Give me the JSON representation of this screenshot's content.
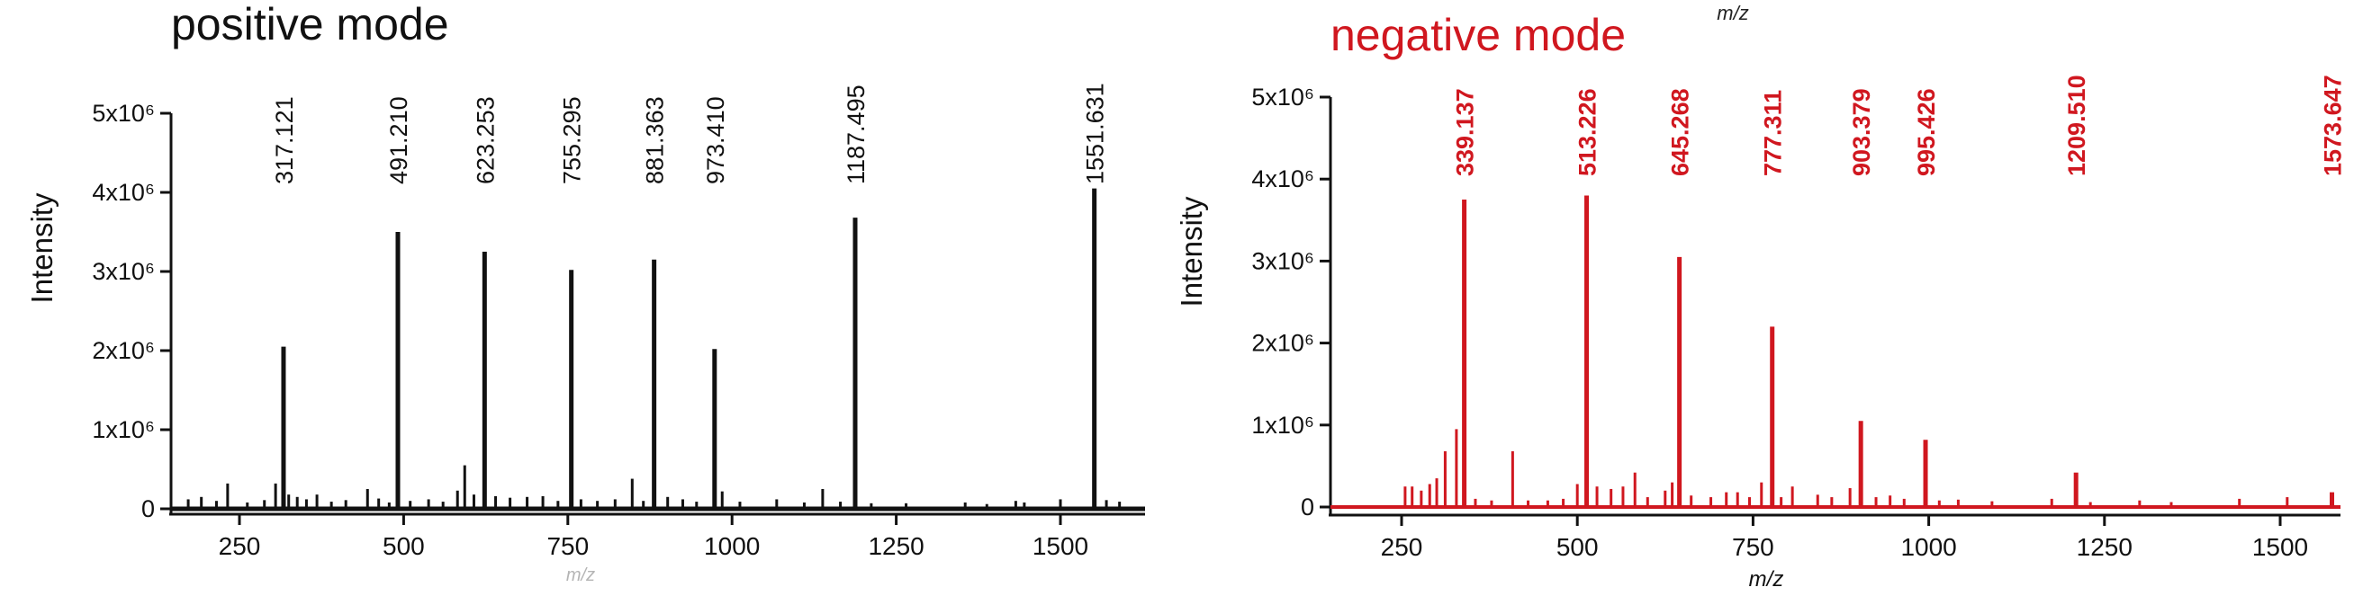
{
  "chart_data": [
    {
      "type": "line",
      "title": "positive mode",
      "xlabel": "m/z",
      "ylabel": "Intensity",
      "color": "#111111",
      "xlim": [
        160,
        1600
      ],
      "ylim": [
        0,
        5000000
      ],
      "x_ticks": [
        250,
        500,
        750,
        1000,
        1250,
        1500
      ],
      "y_tick_labels": [
        "0",
        "1x10⁶",
        "2x10⁶",
        "3x10⁶",
        "4x10⁶",
        "5x10⁶"
      ],
      "y_tick_values": [
        0,
        1000000,
        2000000,
        3000000,
        4000000,
        5000000
      ],
      "labeled_peaks": [
        {
          "label": "317.121",
          "x": 317.121,
          "y": 2050000
        },
        {
          "label": "491.210",
          "x": 491.21,
          "y": 3500000
        },
        {
          "label": "623.253",
          "x": 623.253,
          "y": 3250000
        },
        {
          "label": "755.295",
          "x": 755.295,
          "y": 3020000
        },
        {
          "label": "881.363",
          "x": 881.363,
          "y": 3150000
        },
        {
          "label": "973.410",
          "x": 973.41,
          "y": 2020000
        },
        {
          "label": "1187.495",
          "x": 1187.495,
          "y": 3680000
        },
        {
          "label": "1551.631",
          "x": 1551.631,
          "y": 4050000
        }
      ],
      "minor_peaks": [
        {
          "x": 172,
          "y": 120000
        },
        {
          "x": 192,
          "y": 150000
        },
        {
          "x": 215,
          "y": 100000
        },
        {
          "x": 232,
          "y": 320000
        },
        {
          "x": 262,
          "y": 80000
        },
        {
          "x": 288,
          "y": 110000
        },
        {
          "x": 305,
          "y": 320000
        },
        {
          "x": 325,
          "y": 180000
        },
        {
          "x": 338,
          "y": 150000
        },
        {
          "x": 352,
          "y": 120000
        },
        {
          "x": 368,
          "y": 180000
        },
        {
          "x": 390,
          "y": 90000
        },
        {
          "x": 412,
          "y": 110000
        },
        {
          "x": 445,
          "y": 250000
        },
        {
          "x": 462,
          "y": 130000
        },
        {
          "x": 478,
          "y": 80000
        },
        {
          "x": 510,
          "y": 100000
        },
        {
          "x": 538,
          "y": 120000
        },
        {
          "x": 560,
          "y": 90000
        },
        {
          "x": 582,
          "y": 230000
        },
        {
          "x": 593,
          "y": 550000
        },
        {
          "x": 607,
          "y": 180000
        },
        {
          "x": 640,
          "y": 160000
        },
        {
          "x": 662,
          "y": 140000
        },
        {
          "x": 688,
          "y": 150000
        },
        {
          "x": 712,
          "y": 160000
        },
        {
          "x": 735,
          "y": 100000
        },
        {
          "x": 770,
          "y": 120000
        },
        {
          "x": 795,
          "y": 100000
        },
        {
          "x": 822,
          "y": 120000
        },
        {
          "x": 848,
          "y": 380000
        },
        {
          "x": 865,
          "y": 100000
        },
        {
          "x": 902,
          "y": 150000
        },
        {
          "x": 925,
          "y": 120000
        },
        {
          "x": 946,
          "y": 90000
        },
        {
          "x": 985,
          "y": 220000
        },
        {
          "x": 1012,
          "y": 90000
        },
        {
          "x": 1068,
          "y": 120000
        },
        {
          "x": 1110,
          "y": 80000
        },
        {
          "x": 1138,
          "y": 250000
        },
        {
          "x": 1165,
          "y": 90000
        },
        {
          "x": 1212,
          "y": 70000
        },
        {
          "x": 1265,
          "y": 70000
        },
        {
          "x": 1355,
          "y": 80000
        },
        {
          "x": 1388,
          "y": 60000
        },
        {
          "x": 1432,
          "y": 100000
        },
        {
          "x": 1445,
          "y": 80000
        },
        {
          "x": 1500,
          "y": 120000
        },
        {
          "x": 1570,
          "y": 110000
        },
        {
          "x": 1590,
          "y": 90000
        }
      ]
    },
    {
      "type": "line",
      "title": "negative mode",
      "xlabel": "m/z",
      "ylabel": "Intensity",
      "color": "#d0171f",
      "xlim": [
        160,
        1600
      ],
      "ylim": [
        0,
        5000000
      ],
      "x_ticks": [
        250,
        500,
        750,
        1000,
        1250,
        1500
      ],
      "y_tick_labels": [
        "0",
        "1x10⁶",
        "2x10⁶",
        "3x10⁶",
        "4x10⁶",
        "5x10⁶"
      ],
      "y_tick_values": [
        0,
        1000000,
        2000000,
        3000000,
        4000000,
        5000000
      ],
      "labeled_peaks": [
        {
          "label": "339.137",
          "x": 339.137,
          "y": 3750000
        },
        {
          "label": "513.226",
          "x": 513.226,
          "y": 3800000
        },
        {
          "label": "645.268",
          "x": 645.268,
          "y": 3050000
        },
        {
          "label": "777.311",
          "x": 777.311,
          "y": 2200000
        },
        {
          "label": "903.379",
          "x": 903.379,
          "y": 1050000
        },
        {
          "label": "995.426",
          "x": 995.426,
          "y": 820000
        },
        {
          "label": "1209.510",
          "x": 1209.51,
          "y": 420000
        },
        {
          "label": "1573.647",
          "x": 1573.647,
          "y": 180000
        }
      ],
      "minor_peaks": [
        {
          "x": 255,
          "y": 250000
        },
        {
          "x": 265,
          "y": 250000
        },
        {
          "x": 278,
          "y": 200000
        },
        {
          "x": 290,
          "y": 280000
        },
        {
          "x": 300,
          "y": 350000
        },
        {
          "x": 312,
          "y": 680000
        },
        {
          "x": 328,
          "y": 950000
        },
        {
          "x": 355,
          "y": 100000
        },
        {
          "x": 378,
          "y": 80000
        },
        {
          "x": 408,
          "y": 680000
        },
        {
          "x": 430,
          "y": 80000
        },
        {
          "x": 458,
          "y": 80000
        },
        {
          "x": 480,
          "y": 100000
        },
        {
          "x": 500,
          "y": 280000
        },
        {
          "x": 528,
          "y": 250000
        },
        {
          "x": 548,
          "y": 220000
        },
        {
          "x": 565,
          "y": 250000
        },
        {
          "x": 582,
          "y": 420000
        },
        {
          "x": 600,
          "y": 120000
        },
        {
          "x": 625,
          "y": 200000
        },
        {
          "x": 635,
          "y": 300000
        },
        {
          "x": 662,
          "y": 140000
        },
        {
          "x": 690,
          "y": 120000
        },
        {
          "x": 712,
          "y": 180000
        },
        {
          "x": 728,
          "y": 180000
        },
        {
          "x": 745,
          "y": 120000
        },
        {
          "x": 762,
          "y": 300000
        },
        {
          "x": 790,
          "y": 120000
        },
        {
          "x": 806,
          "y": 250000
        },
        {
          "x": 842,
          "y": 150000
        },
        {
          "x": 862,
          "y": 120000
        },
        {
          "x": 888,
          "y": 230000
        },
        {
          "x": 925,
          "y": 120000
        },
        {
          "x": 945,
          "y": 140000
        },
        {
          "x": 965,
          "y": 100000
        },
        {
          "x": 1015,
          "y": 80000
        },
        {
          "x": 1042,
          "y": 90000
        },
        {
          "x": 1090,
          "y": 70000
        },
        {
          "x": 1175,
          "y": 100000
        },
        {
          "x": 1230,
          "y": 60000
        },
        {
          "x": 1300,
          "y": 80000
        },
        {
          "x": 1345,
          "y": 60000
        },
        {
          "x": 1442,
          "y": 100000
        },
        {
          "x": 1510,
          "y": 120000
        }
      ]
    }
  ],
  "stray_labels": {
    "top_mz": "m/z",
    "left_bottom_mz": "m/z"
  }
}
